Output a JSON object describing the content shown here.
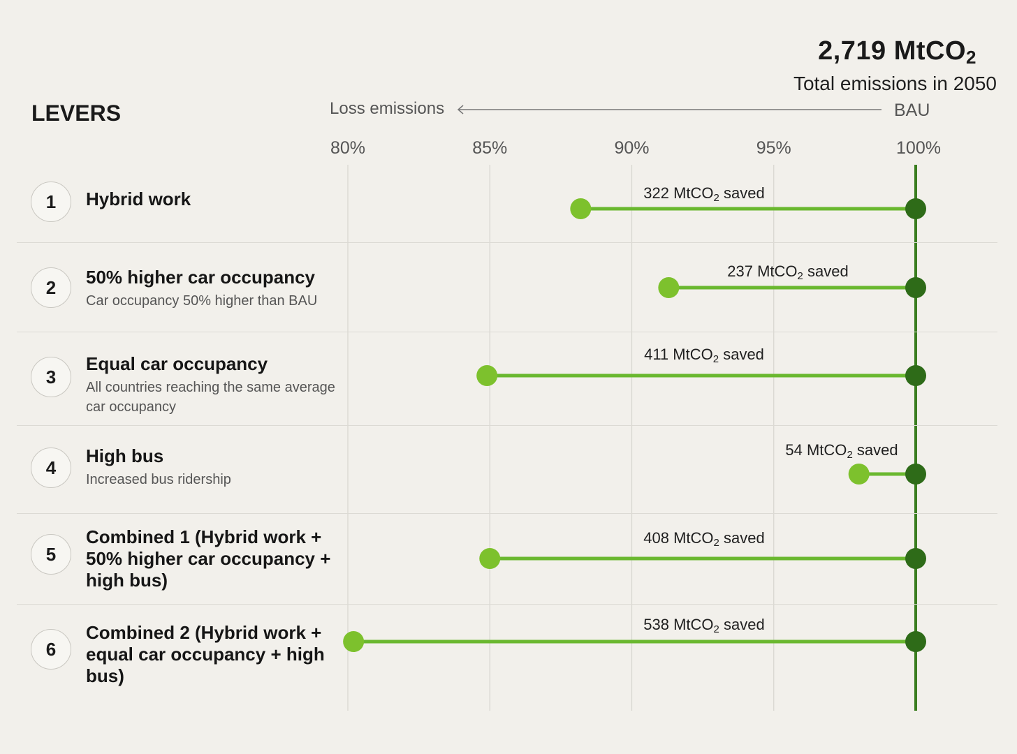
{
  "header": {
    "total_value": "2,719 MtCO",
    "total_value_sub": "2",
    "total_label": "Total emissions in 2050",
    "levers_heading": "LEVERS",
    "loss_label": "Loss emissions",
    "bau_label": "BAU"
  },
  "colors": {
    "lever_line": "#6ab82f",
    "lever_dot": "#7dc12d",
    "bau_line": "#3a7d1f",
    "bau_dot": "#2e6b18",
    "grid": "#d7d5cf"
  },
  "levers": [
    {
      "number": "1",
      "title": "Hybrid work",
      "subtitle": "",
      "saved_value": "322",
      "saved_unit": "MtCO",
      "saved_sub": "2",
      "saved_suffix": "saved"
    },
    {
      "number": "2",
      "title": "50% higher car occupancy",
      "subtitle": "Car occupancy 50% higher than BAU",
      "saved_value": "237",
      "saved_unit": "MtCO",
      "saved_sub": "2",
      "saved_suffix": "saved"
    },
    {
      "number": "3",
      "title": "Equal car occupancy",
      "subtitle": "All countries reaching the same average car occupancy",
      "saved_value": "411",
      "saved_unit": "MtCO",
      "saved_sub": "2",
      "saved_suffix": "saved"
    },
    {
      "number": "4",
      "title": "High bus",
      "subtitle": "Increased bus ridership",
      "saved_value": "54",
      "saved_unit": "MtCO",
      "saved_sub": "2",
      "saved_suffix": "saved"
    },
    {
      "number": "5",
      "title": "Combined 1 (Hybrid work + 50% higher car occupancy + high bus)",
      "subtitle": "",
      "saved_value": "408",
      "saved_unit": "MtCO",
      "saved_sub": "2",
      "saved_suffix": "saved"
    },
    {
      "number": "6",
      "title": "Combined 2 (Hybrid work + equal car occupancy + high bus)",
      "subtitle": "",
      "saved_value": "538",
      "saved_unit": "MtCO",
      "saved_sub": "2",
      "saved_suffix": "saved"
    }
  ],
  "chart_data": {
    "type": "dumbbell",
    "x_axis": {
      "ticks": [
        80,
        85,
        90,
        95,
        100
      ],
      "tick_labels": [
        "80%",
        "85%",
        "90%",
        "95%",
        "100%"
      ],
      "range": [
        80,
        100
      ],
      "unit": "% of BAU emissions"
    },
    "baseline": 100,
    "total_emissions_2050_MtCO2": 2719,
    "series": [
      {
        "lever": "Hybrid work",
        "start": 100,
        "end": 88.2,
        "saved_MtCO2": 322
      },
      {
        "lever": "50% higher car occupancy",
        "start": 100,
        "end": 91.3,
        "saved_MtCO2": 237
      },
      {
        "lever": "Equal car occupancy",
        "start": 100,
        "end": 84.9,
        "saved_MtCO2": 411
      },
      {
        "lever": "High bus",
        "start": 100,
        "end": 98.0,
        "saved_MtCO2": 54
      },
      {
        "lever": "Combined 1",
        "start": 100,
        "end": 85.0,
        "saved_MtCO2": 408
      },
      {
        "lever": "Combined 2",
        "start": 100,
        "end": 80.2,
        "saved_MtCO2": 538
      }
    ],
    "grid": true,
    "legend": "none"
  }
}
